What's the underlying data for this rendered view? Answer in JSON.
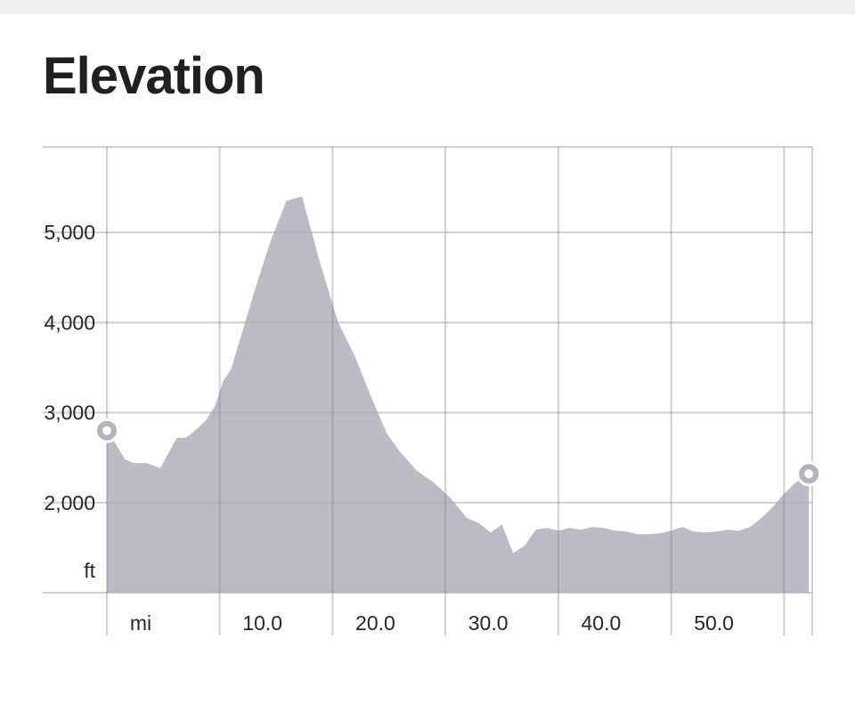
{
  "header": {
    "title": "Elevation"
  },
  "chart_data": {
    "type": "area",
    "title": "Elevation",
    "xlabel": "mi",
    "ylabel": "ft",
    "x_ticks": [
      10.0,
      20.0,
      30.0,
      40.0,
      50.0
    ],
    "x_tick_labels": [
      "10.0",
      "20.0",
      "30.0",
      "40.0",
      "50.0"
    ],
    "y_ticks": [
      2000,
      3000,
      4000,
      5000
    ],
    "y_tick_labels": [
      "2,000",
      "3,000",
      "4,000",
      "5,000"
    ],
    "xlim": [
      0,
      62.5
    ],
    "ylim": [
      1000,
      5950
    ],
    "grid": true,
    "colors": {
      "area": "#a8a8b6",
      "grid": "#cfcfd4",
      "marker": "#b3b3be"
    },
    "series": [
      {
        "x": [
          0,
          0.8,
          1.6,
          2.4,
          3.5,
          4.2,
          4.7,
          5.5,
          6.2,
          7.0,
          8.0,
          8.8,
          9.6,
          10.3,
          11.0,
          12.0,
          13.2,
          14.5,
          15.9,
          17.3,
          18.8,
          20.5,
          22.0,
          23.4,
          24.8,
          26.0,
          27.5,
          28.9,
          30.4,
          31.9,
          33.0,
          34.0,
          35.0,
          36.0,
          37.0,
          38.0,
          39.0,
          40.0,
          41.0,
          42.0,
          43.0,
          44.0,
          45.0,
          46.0,
          47.0,
          48.0,
          49.0,
          50.0,
          51.0,
          52.0,
          53.0,
          54.0,
          55.0,
          56.0,
          57.0,
          58.0,
          59.0,
          60.0,
          61.0,
          62.2
        ],
        "y": [
          2800,
          2650,
          2480,
          2440,
          2440,
          2410,
          2380,
          2560,
          2720,
          2720,
          2820,
          2920,
          3080,
          3350,
          3480,
          3900,
          4400,
          4900,
          5350,
          5400,
          4700,
          4000,
          3620,
          3180,
          2770,
          2560,
          2350,
          2230,
          2060,
          1830,
          1770,
          1670,
          1760,
          1440,
          1520,
          1700,
          1720,
          1690,
          1720,
          1700,
          1730,
          1720,
          1690,
          1680,
          1650,
          1650,
          1660,
          1690,
          1730,
          1680,
          1670,
          1680,
          1700,
          1690,
          1730,
          1830,
          1950,
          2100,
          2220,
          2320
        ]
      }
    ]
  }
}
